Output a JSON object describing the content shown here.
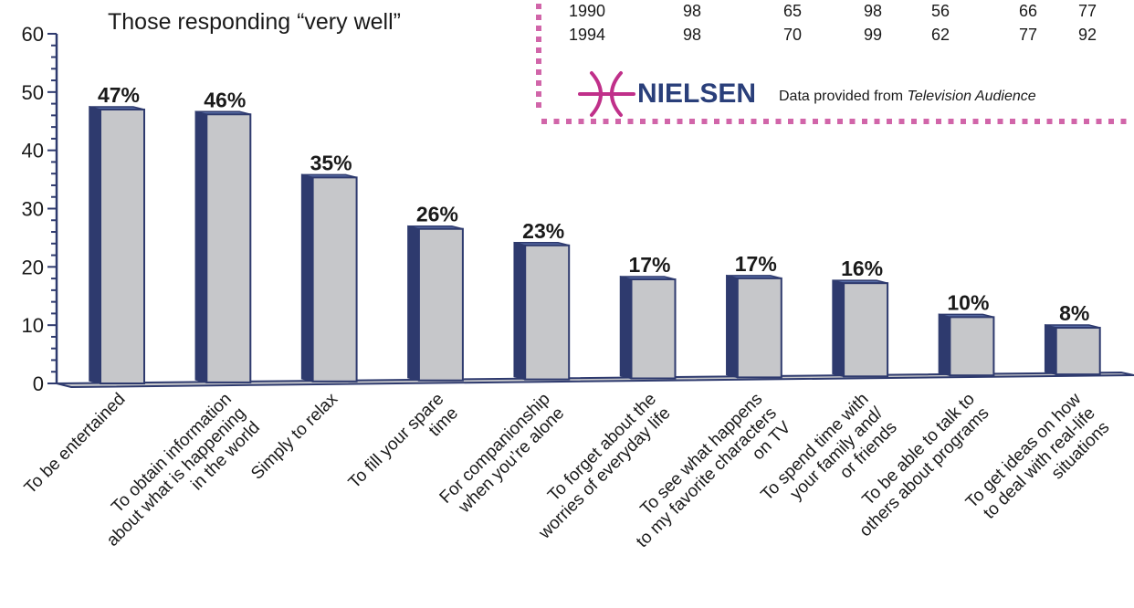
{
  "chart_data": {
    "type": "bar",
    "subtitle": "Those responding “very well”",
    "categories": [
      [
        "To be entertained"
      ],
      [
        "To obtain information",
        "about what is happening",
        "in the world"
      ],
      [
        "Simply to relax"
      ],
      [
        "To fill your spare",
        "time"
      ],
      [
        "For companionship",
        "when you’re alone"
      ],
      [
        "To forget about the",
        "worries of everyday life"
      ],
      [
        "To see what happens",
        "to my favorite characters",
        "on TV"
      ],
      [
        "To spend time with",
        "your family and/",
        "or friends"
      ],
      [
        "To be able to talk to",
        "others about programs"
      ],
      [
        "To get ideas on how",
        "to deal with real-life",
        "situations"
      ]
    ],
    "values": [
      47,
      46,
      35,
      26,
      23,
      17,
      17,
      16,
      10,
      8
    ],
    "value_labels": [
      "47%",
      "46%",
      "35%",
      "26%",
      "23%",
      "17%",
      "17%",
      "16%",
      "10%",
      "8%"
    ],
    "ylim": [
      0,
      60
    ],
    "yticks": [
      "0",
      "10",
      "20",
      "30",
      "40",
      "50",
      "60"
    ],
    "colors": {
      "bar_face": "#c6c7ca",
      "bar_side": "#2e3a6e",
      "bar_top": "#5a6fa8",
      "axis": "#2e3a6e"
    }
  },
  "inset": {
    "rows": [
      [
        "1990",
        "98",
        "65",
        "98",
        "56",
        "66",
        "77"
      ],
      [
        "1994",
        "98",
        "70",
        "99",
        "62",
        "77",
        "92"
      ]
    ],
    "logo_icon": "pisces-symbol-icon",
    "brand": "NIELSEN",
    "credit_prefix": "Data provided from ",
    "credit_italic": "Television Audience",
    "colors": {
      "logo": "#c0308a",
      "border": "#c94a9a"
    }
  }
}
